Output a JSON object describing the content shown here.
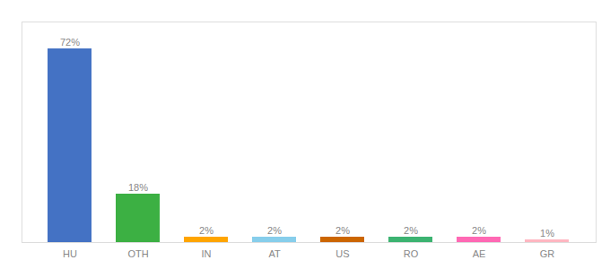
{
  "chart_data": {
    "type": "bar",
    "categories": [
      "HU",
      "OTH",
      "IN",
      "AT",
      "US",
      "RO",
      "AE",
      "GR"
    ],
    "values": [
      72,
      18,
      2,
      2,
      2,
      2,
      2,
      1
    ],
    "value_labels": [
      "72%",
      "18%",
      "2%",
      "2%",
      "2%",
      "2%",
      "2%",
      "1%"
    ],
    "colors": [
      "#4472C4",
      "#3CB043",
      "#FFA500",
      "#87CEEB",
      "#CC6600",
      "#3CB371",
      "#FF69B4",
      "#FFB6C1"
    ],
    "ylim": [
      0,
      82
    ],
    "data_labels": true,
    "grid": false,
    "tick_labels": "x"
  }
}
